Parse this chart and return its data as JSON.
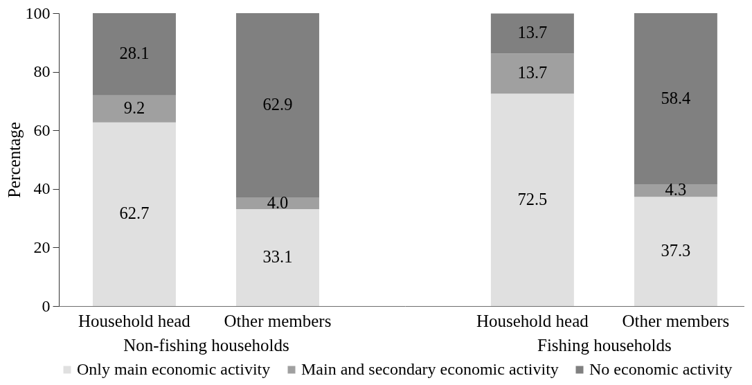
{
  "chart_data": [
    {
      "type": "bar",
      "stacked": true,
      "categories": [
        "Household head",
        "Other members"
      ],
      "xlabel": "Non-fishing households",
      "ylabel": "Percentage",
      "ylim": [
        0,
        100
      ],
      "yticks": [
        0,
        20,
        40,
        60,
        80,
        100
      ],
      "legend": "bottom",
      "series": [
        {
          "name": "Only main economic activity",
          "color": "#e0e0e0",
          "values": [
            62.7,
            33.1
          ],
          "value_labels": [
            "62.7",
            "33.1"
          ]
        },
        {
          "name": "Main and secondary economic activity",
          "color": "#a0a0a0",
          "values": [
            9.2,
            4.0
          ],
          "value_labels": [
            "9.2",
            "4.0"
          ]
        },
        {
          "name": "No economic activity",
          "color": "#808080",
          "values": [
            28.1,
            62.9
          ],
          "value_labels": [
            "28.1",
            "62.9"
          ]
        }
      ]
    },
    {
      "type": "bar",
      "stacked": true,
      "categories": [
        "Household head",
        "Other members"
      ],
      "xlabel": "Fishing households",
      "ylim": [
        0,
        100
      ],
      "yticks": [
        0,
        20,
        40,
        60,
        80,
        100
      ],
      "tick_labels": "x",
      "legend": "bottom",
      "series": [
        {
          "name": "Only main economic activity",
          "color": "#e0e0e0",
          "values": [
            72.5,
            37.3
          ],
          "value_labels": [
            "72.5",
            "37.3"
          ]
        },
        {
          "name": "Main and secondary economic activity",
          "color": "#a0a0a0",
          "values": [
            13.7,
            4.3
          ],
          "value_labels": [
            "13.7",
            "4.3"
          ]
        },
        {
          "name": "No economic activity",
          "color": "#808080",
          "values": [
            13.7,
            58.4
          ],
          "value_labels": [
            "13.7",
            "58.4"
          ]
        }
      ]
    }
  ]
}
